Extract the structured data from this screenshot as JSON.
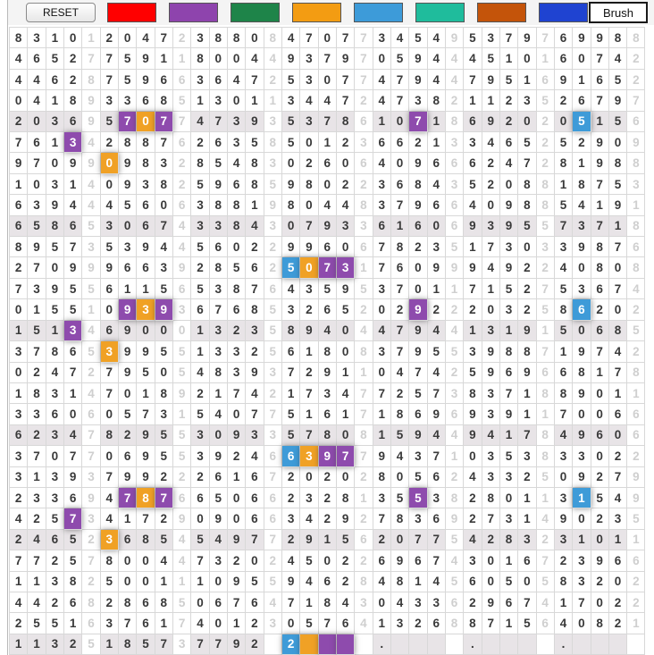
{
  "toolbar": {
    "reset_label": "RESET",
    "brush_label": "Brush",
    "swatches": [
      {
        "name": "red",
        "color": "#ff0000"
      },
      {
        "name": "purple",
        "color": "#8e44ad"
      },
      {
        "name": "green",
        "color": "#1e8449"
      },
      {
        "name": "orange",
        "color": "#f39c12"
      },
      {
        "name": "light-blue",
        "color": "#3d9bd9"
      },
      {
        "name": "teal",
        "color": "#1fbc9c"
      },
      {
        "name": "dark-orange",
        "color": "#c4540a"
      },
      {
        "name": "blue",
        "color": "#1f43d1"
      }
    ]
  },
  "grid": {
    "columns": 35,
    "separator_column_interval": 5,
    "gray_row_interval": 5,
    "empty_cell_dot": ".",
    "highlight_colors": {
      "purple": "#8e4bad",
      "orange": "#f0a125",
      "blue": "#3e9bd8"
    },
    "rows": [
      "83101204723880847077345495379769988",
      "46527759118004493797059444510160742",
      "44628759663647253077479447951691652",
      "04189336851301134472473821123526797",
      "20369570774739353786107186920205156",
      "76134288762635850123662133465252909",
      "97099098328548302606409666247281988",
      "10314093825968598022368435208818753",
      "63944456063881980448379664098854191",
      "65865306743384307933616069395573718",
      "89573539445602299606782351730339876",
      "27099966392856250731760999492240808",
      "73955611565387643595370117152753674",
      "01551093936768532652029222032586202",
      "15134690001323589404479441319150685",
      "37865399551332561808379553988719742",
      "02472795054839372911047425969668178",
      "18314701892174217347725738371889011",
      "33606057315407751617186969391170066",
      "62347829553093357808159449417849606",
      "37077069553924663977943710353833022",
      "31393799222616720202805624332509279",
      "23369478766506623281355382801131549",
      "42573417290906634292783692731490235",
      "24652368545497729156207754283231011",
      "77257800447320245022696743016723966",
      "11382500111095594628481456050583202",
      "44268286850676471843043362967417022",
      "25516376174012305764132688715640821",
      "11325185737792 2    .    .    .    ."
    ],
    "highlights": [
      {
        "r": 4,
        "c": 6,
        "color": "purple"
      },
      {
        "r": 4,
        "c": 7,
        "color": "orange"
      },
      {
        "r": 4,
        "c": 8,
        "color": "purple"
      },
      {
        "r": 4,
        "c": 22,
        "color": "purple"
      },
      {
        "r": 4,
        "c": 31,
        "color": "blue"
      },
      {
        "r": 5,
        "c": 3,
        "color": "purple"
      },
      {
        "r": 6,
        "c": 5,
        "color": "orange"
      },
      {
        "r": 11,
        "c": 15,
        "color": "blue"
      },
      {
        "r": 11,
        "c": 16,
        "color": "orange"
      },
      {
        "r": 11,
        "c": 17,
        "color": "purple"
      },
      {
        "r": 11,
        "c": 18,
        "color": "purple"
      },
      {
        "r": 13,
        "c": 6,
        "color": "purple"
      },
      {
        "r": 13,
        "c": 7,
        "color": "orange"
      },
      {
        "r": 13,
        "c": 8,
        "color": "purple"
      },
      {
        "r": 13,
        "c": 22,
        "color": "purple"
      },
      {
        "r": 13,
        "c": 31,
        "color": "blue"
      },
      {
        "r": 14,
        "c": 3,
        "color": "purple"
      },
      {
        "r": 15,
        "c": 5,
        "color": "orange"
      },
      {
        "r": 20,
        "c": 15,
        "color": "blue"
      },
      {
        "r": 20,
        "c": 16,
        "color": "orange"
      },
      {
        "r": 20,
        "c": 17,
        "color": "purple"
      },
      {
        "r": 20,
        "c": 18,
        "color": "purple"
      },
      {
        "r": 22,
        "c": 6,
        "color": "purple"
      },
      {
        "r": 22,
        "c": 7,
        "color": "orange"
      },
      {
        "r": 22,
        "c": 8,
        "color": "purple"
      },
      {
        "r": 22,
        "c": 22,
        "color": "purple"
      },
      {
        "r": 22,
        "c": 31,
        "color": "blue"
      },
      {
        "r": 23,
        "c": 3,
        "color": "purple"
      },
      {
        "r": 24,
        "c": 5,
        "color": "orange"
      },
      {
        "r": 29,
        "c": 15,
        "color": "blue"
      },
      {
        "r": 29,
        "c": 16,
        "color": "orange"
      },
      {
        "r": 29,
        "c": 17,
        "color": "purple"
      },
      {
        "r": 29,
        "c": 18,
        "color": "purple"
      }
    ]
  }
}
